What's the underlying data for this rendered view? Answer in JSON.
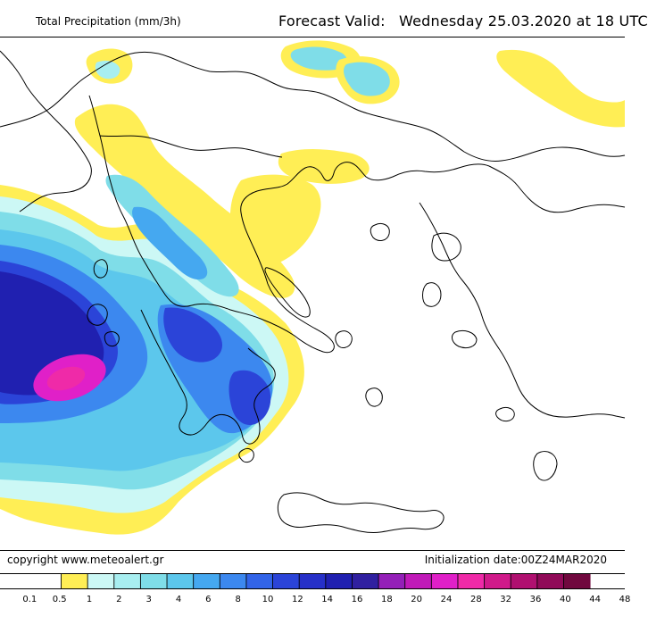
{
  "header": {
    "left_title": "Total Precipitation (mm/3h)",
    "forecast_label": "Forecast Valid:",
    "forecast_day": "Wednesday",
    "forecast_date": "25.03.2020",
    "forecast_at": "at",
    "forecast_time": "18 UTC"
  },
  "footer": {
    "copyright": "copyright  www.meteoalert.gr",
    "initialization": "Initialization date:00Z24MAR2020"
  },
  "legend": {
    "labels": [
      "0.1",
      "0.5",
      "1",
      "2",
      "3",
      "4",
      "6",
      "8",
      "10",
      "12",
      "14",
      "16",
      "18",
      "20",
      "24",
      "28",
      "32",
      "36",
      "40",
      "44",
      "48"
    ],
    "colors": [
      "#ffffff",
      "#ffee55",
      "#ccf8f5",
      "#a8eef0",
      "#7fdde8",
      "#5cc7ec",
      "#45a8f0",
      "#3c88ef",
      "#3264e8",
      "#2b44d8",
      "#2630c8",
      "#2020b0",
      "#3020a0",
      "#9420b8",
      "#c01ab8",
      "#e020c8",
      "#ef2aa8",
      "#d01a8a",
      "#b01070",
      "#900a58",
      "#70083e"
    ]
  },
  "map": {
    "colors": {
      "yellow": "#ffee55",
      "pale_cyan": "#ccf8f5",
      "light_cyan": "#a8eef0",
      "cyan": "#7fdde8",
      "sky": "#5cc7ec",
      "blue_light": "#45a8f0",
      "blue": "#3c88ef",
      "blue_mid": "#3264e8",
      "blue_dark": "#2b44d8",
      "navy": "#2020b0",
      "magenta": "#e020c8",
      "pink": "#ef2aa8",
      "coast": "#000000"
    }
  }
}
